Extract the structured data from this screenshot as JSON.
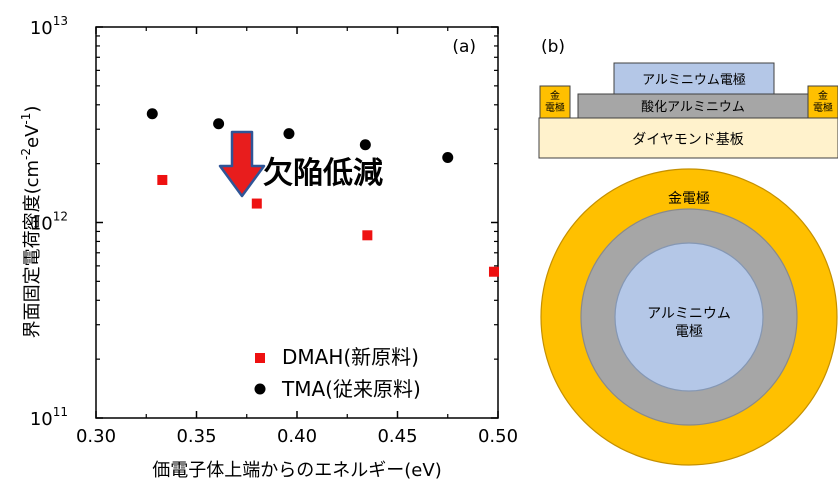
{
  "chart_data": {
    "type": "scatter",
    "panel_label": "(a)",
    "xlabel": "価電子体上端からのエネルギー(eV)",
    "ylabel_main": "界面固定電荷密度(cm",
    "ylabel_exp1": "-2",
    "ylabel_mid": "eV",
    "ylabel_exp2": "-1",
    "ylabel_close": ")",
    "xlim": [
      0.3,
      0.5
    ],
    "ylim": [
      100000000000.0,
      10000000000000.0
    ],
    "yscale": "log",
    "grid": false,
    "x_ticks": [
      "0.30",
      "0.35",
      "0.40",
      "0.45",
      "0.50"
    ],
    "y_ticks": [
      {
        "base": "10",
        "exp": "11"
      },
      {
        "base": "10",
        "exp": "12"
      },
      {
        "base": "10",
        "exp": "13"
      }
    ],
    "legend_position": "bottom-right",
    "annotation": "欠陥低減",
    "series": [
      {
        "name": "DMAH(新原料)",
        "marker": "square",
        "color": "#ee1111",
        "x": [
          0.333,
          0.38,
          0.435,
          0.498
        ],
        "y": [
          1650000000000.0,
          1250000000000.0,
          860000000000.0,
          560000000000.0
        ]
      },
      {
        "name": "TMA(従来原料)",
        "marker": "circle",
        "color": "#000000",
        "x": [
          0.328,
          0.361,
          0.396,
          0.434,
          0.475
        ],
        "y": [
          3600000000000.0,
          3200000000000.0,
          2850000000000.0,
          2500000000000.0,
          2150000000000.0
        ]
      }
    ]
  },
  "diagram": {
    "panel_label": "(b)",
    "top_electrode": "アルミニウム電極",
    "oxide": "酸化アルミニウム",
    "side_electrode_left": "金\n電極",
    "side_electrode_right": "金\n電極",
    "substrate": "ダイヤモンド基板",
    "outer_ring_label": "金電極",
    "inner_label": "アルミニウム\n電極",
    "colors": {
      "gold": "#ffc000",
      "gold_stroke": "#c59000",
      "gray": "#a6a6a6",
      "blue": "#b4c7e7",
      "substrate": "#fff2cc",
      "arrow": "#e81d1d",
      "arrow_stroke": "#2f5597"
    }
  }
}
